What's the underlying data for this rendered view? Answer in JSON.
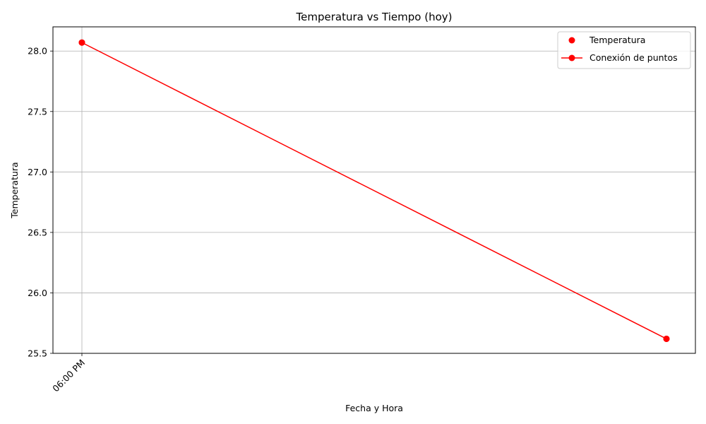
{
  "chart_data": {
    "type": "line",
    "title": "Temperatura vs Tiempo (hoy)",
    "xlabel": "Fecha y Hora",
    "ylabel": "Temperatura",
    "x_tick_labels": [
      "06:00 PM"
    ],
    "y_ticks": [
      "25.5",
      "26.0",
      "26.5",
      "27.0",
      "27.5",
      "28.0"
    ],
    "ylim": [
      25.5,
      28.2
    ],
    "grid": true,
    "legend_position": "top-right",
    "series": [
      {
        "name": "Temperatura",
        "style": "scatter",
        "color": "#ff0000",
        "points": [
          {
            "x": "18:00",
            "y": 28.07
          },
          {
            "x": "18:50",
            "y": 25.62
          }
        ]
      },
      {
        "name": "Conexión de puntos",
        "style": "line-marker",
        "color": "#ff0000",
        "points": [
          {
            "x": "18:00",
            "y": 28.07
          },
          {
            "x": "18:50",
            "y": 25.62
          }
        ]
      }
    ]
  }
}
